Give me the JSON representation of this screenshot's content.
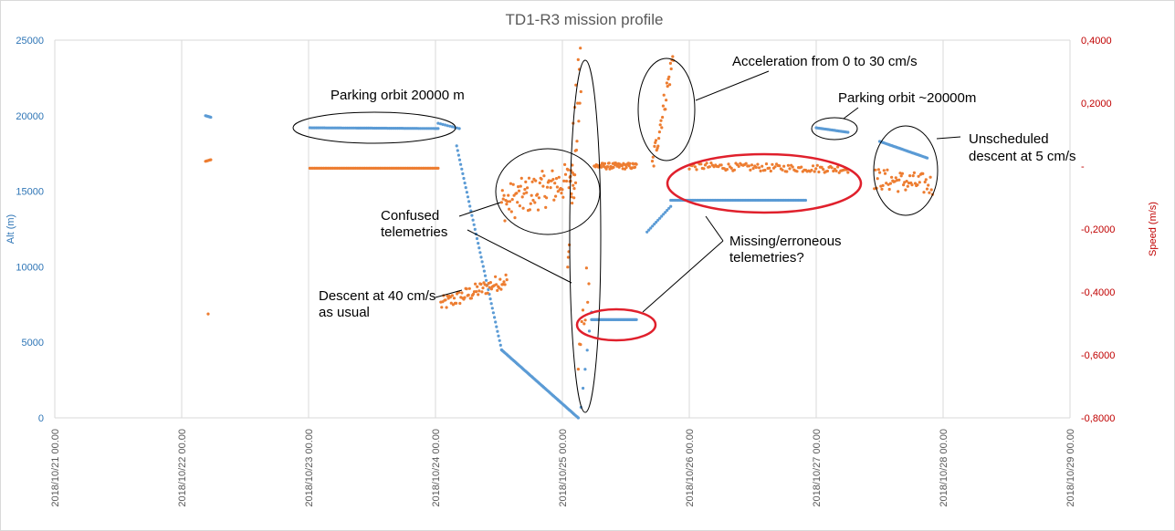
{
  "chart_data": {
    "type": "scatter",
    "title": "TD1-R3 mission profile",
    "ylabel": "Alt (m)",
    "y2label": "Speed (m/s)",
    "ylim": [
      0,
      25000
    ],
    "y2lim": [
      -0.8,
      0.4
    ],
    "xlim": [
      "2018-10-21",
      "2018-10-29"
    ],
    "y_ticks": [
      "0",
      "5000",
      "10000",
      "15000",
      "20000",
      "25000"
    ],
    "y2_ticks": [
      "-0,8000",
      "-0,6000",
      "-0,4000",
      "-0,2000",
      "-",
      "0,2000",
      "0,4000"
    ],
    "x_ticks": [
      "2018/10/21 00.00",
      "2018/10/22 00.00",
      "2018/10/23 00.00",
      "2018/10/24 00.00",
      "2018/10/25 00.00",
      "2018/10/26 00.00",
      "2018/10/27 00.00",
      "2018/10/28 00.00",
      "2018/10/29 00.00"
    ],
    "grid": "vertical",
    "colors": {
      "altitude": "#5b9bd5",
      "speed": "#ed7d31",
      "highlight": "#e0202c",
      "outline": "#000000"
    },
    "series": [
      {
        "axis": "left",
        "color": "#5b9bd5",
        "segments": [
          {
            "x": [
              "2018-10-22 04:30",
              "2018-10-22 05:30"
            ],
            "y": [
              20000,
              19900
            ],
            "n": 8
          },
          {
            "x": [
              "2018-10-23 00:15",
              "2018-10-24 00:30"
            ],
            "y": [
              19200,
              19150
            ],
            "n": 80
          },
          {
            "x": [
              "2018-10-24 00:30",
              "2018-10-24 04:30"
            ],
            "y": [
              19500,
              19150
            ],
            "n": 10
          },
          {
            "x": [
              "2018-10-24 04:00",
              "2018-10-24 12:30"
            ],
            "y": [
              18000,
              4500
            ],
            "n": 45
          },
          {
            "x": [
              "2018-10-24 12:30",
              "2018-10-25 03:00"
            ],
            "y": [
              4500,
              0
            ],
            "n": 70
          },
          {
            "x": [
              "2018-10-25 03:30",
              "2018-10-25 05:30"
            ],
            "y": [
              700,
              7000
            ],
            "n": 6
          },
          {
            "x": [
              "2018-10-25 05:30",
              "2018-10-25 14:00"
            ],
            "y": [
              6500,
              6500
            ],
            "n": 60
          },
          {
            "x": [
              "2018-10-25 16:00",
              "2018-10-25 20:30"
            ],
            "y": [
              12300,
              14000
            ],
            "n": 14
          },
          {
            "x": [
              "2018-10-25 20:30",
              "2018-10-26 22:00"
            ],
            "y": [
              14400,
              14400
            ],
            "n": 95
          },
          {
            "x": [
              "2018-10-27 00:00",
              "2018-10-27 06:00"
            ],
            "y": [
              19200,
              18900
            ],
            "n": 25
          },
          {
            "x": [
              "2018-10-27 12:00",
              "2018-10-27 21:00"
            ],
            "y": [
              18300,
              17200
            ],
            "n": 40
          }
        ]
      },
      {
        "axis": "right",
        "color": "#ed7d31",
        "segments": [
          {
            "x": [
              "2018-10-22 04:30",
              "2018-10-22 05:30"
            ],
            "y": [
              0.015,
              0.02
            ],
            "n": 6
          },
          {
            "x": [
              "2018-10-22 05:00",
              "2018-10-22 05:00"
            ],
            "y": [
              -0.47,
              -0.47
            ],
            "n": 1
          },
          {
            "x": [
              "2018-10-23 00:15",
              "2018-10-24 00:30"
            ],
            "y": [
              -0.007,
              -0.007
            ],
            "n": 85
          },
          {
            "x": [
              "2018-10-24 01:00",
              "2018-10-24 13:30"
            ],
            "y": [
              -0.44,
              -0.36
            ],
            "n": 70,
            "jitter": 0.025
          },
          {
            "x": [
              "2018-10-24 12:30",
              "2018-10-25 02:30"
            ],
            "y": [
              -0.12,
              -0.04
            ],
            "n": 90,
            "jitter": 0.06
          },
          {
            "x": [
              "2018-10-25 01:00",
              "2018-10-25 03:30"
            ],
            "y": [
              -0.2,
              0.3
            ],
            "n": 25,
            "jitter": 0.15
          },
          {
            "x": [
              "2018-10-25 03:00",
              "2018-10-25 05:00"
            ],
            "y": [
              -0.65,
              -0.3
            ],
            "n": 10,
            "jitter": 0.1
          },
          {
            "x": [
              "2018-10-25 06:00",
              "2018-10-25 14:00"
            ],
            "y": [
              0.0,
              0.0
            ],
            "n": 60,
            "jitter": 0.01
          },
          {
            "x": [
              "2018-10-25 17:00",
              "2018-10-25 21:00"
            ],
            "y": [
              0.0,
              0.35
            ],
            "n": 30,
            "jitter": 0.04
          },
          {
            "x": [
              "2018-10-26 00:00",
              "2018-10-27 06:00"
            ],
            "y": [
              0.0,
              -0.01
            ],
            "n": 110,
            "jitter": 0.012
          },
          {
            "x": [
              "2018-10-27 11:00",
              "2018-10-27 22:00"
            ],
            "y": [
              -0.04,
              -0.06
            ],
            "n": 55,
            "jitter": 0.035
          }
        ]
      }
    ],
    "annotations": [
      "Parking orbit 20000 m",
      "Confused telemetries",
      "Descent at 40 cm/s as usual",
      "Acceleration from 0 to 30 cm/s",
      "Parking orbit ~20000m",
      "Unscheduled descent at 5 cm/s",
      "Missing/erroneous telemetries?"
    ]
  },
  "annot": {
    "parking1": "Parking orbit 20000 m",
    "confused_1": "Confused",
    "confused_2": "telemetries",
    "descent_1": "Descent at 40 cm/s",
    "descent_2": "as usual",
    "accel": "Acceleration from 0 to 30 cm/s",
    "parking2": "Parking orbit ~20000m",
    "unsched_1": "Unscheduled",
    "unsched_2": "descent at 5 cm/s",
    "missing_1": "Missing/erroneous",
    "missing_2": "telemetries?"
  }
}
